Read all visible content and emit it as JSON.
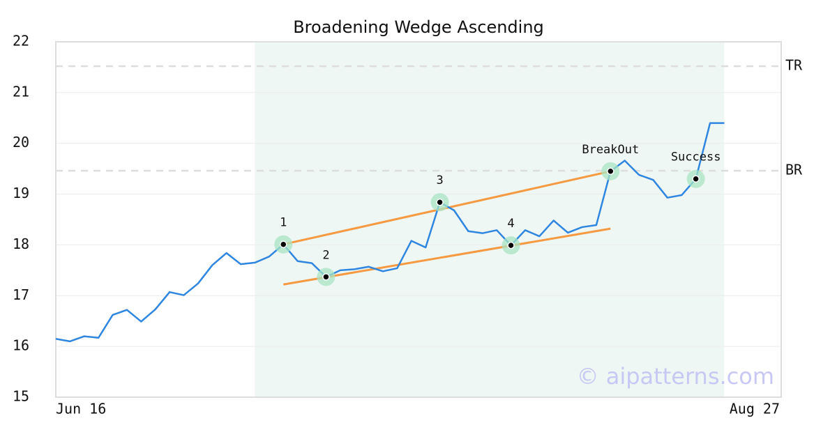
{
  "chart_data": {
    "type": "line",
    "title": "Broadening Wedge Ascending",
    "xlim": [
      0,
      51
    ],
    "xticks": [
      {
        "value": 0,
        "label": "Jun 16"
      },
      {
        "value": 51,
        "label": "Aug 27"
      }
    ],
    "ylim": [
      15,
      22
    ],
    "yticks": [
      15,
      16,
      17,
      18,
      19,
      20,
      21,
      22
    ],
    "grid": true,
    "series": [
      {
        "color": "#2f86e0",
        "x": [
          0,
          1,
          2,
          3,
          4,
          5,
          6,
          7,
          8,
          9,
          10,
          11,
          12,
          13,
          14,
          15,
          16,
          17,
          18,
          19,
          20,
          21,
          22,
          23,
          24,
          25,
          26,
          27,
          28,
          29,
          30,
          31,
          32,
          33,
          34,
          35,
          36,
          37,
          38,
          39,
          40,
          41,
          42,
          43,
          44,
          45,
          46,
          47
        ],
        "values": [
          16.15,
          16.1,
          16.2,
          16.17,
          16.62,
          16.72,
          16.49,
          16.73,
          17.07,
          17.01,
          17.24,
          17.6,
          17.84,
          17.62,
          17.65,
          17.77,
          18.01,
          17.68,
          17.64,
          17.37,
          17.5,
          17.52,
          17.57,
          17.48,
          17.54,
          18.08,
          17.95,
          18.84,
          18.68,
          18.27,
          18.23,
          18.29,
          17.99,
          18.29,
          18.17,
          18.48,
          18.24,
          18.35,
          18.39,
          19.45,
          19.66,
          19.38,
          19.28,
          18.93,
          18.98,
          19.3,
          20.4,
          20.4
        ]
      }
    ],
    "pattern_zone": {
      "start": 14,
      "end": 47,
      "color": "#eef7f3"
    },
    "trendlines": [
      {
        "color": "#f59a42",
        "x": [
          16,
          39
        ],
        "values": [
          18.01,
          19.45
        ]
      },
      {
        "color": "#f59a42",
        "x": [
          16,
          39
        ],
        "values": [
          17.22,
          18.32
        ]
      }
    ],
    "points": [
      {
        "label": "1",
        "x": 16,
        "value": 18.01
      },
      {
        "label": "2",
        "x": 19,
        "value": 17.37
      },
      {
        "label": "3",
        "x": 27,
        "value": 18.84
      },
      {
        "label": "4",
        "x": 32,
        "value": 17.99
      },
      {
        "label": "BreakOut",
        "x": 39,
        "value": 19.45
      },
      {
        "label": "Success",
        "x": 45,
        "value": 19.3
      }
    ],
    "levels": [
      {
        "label": "TR",
        "value": 21.52
      },
      {
        "label": "BR",
        "value": 19.46
      }
    ],
    "watermark": "© aipatterns.com"
  }
}
